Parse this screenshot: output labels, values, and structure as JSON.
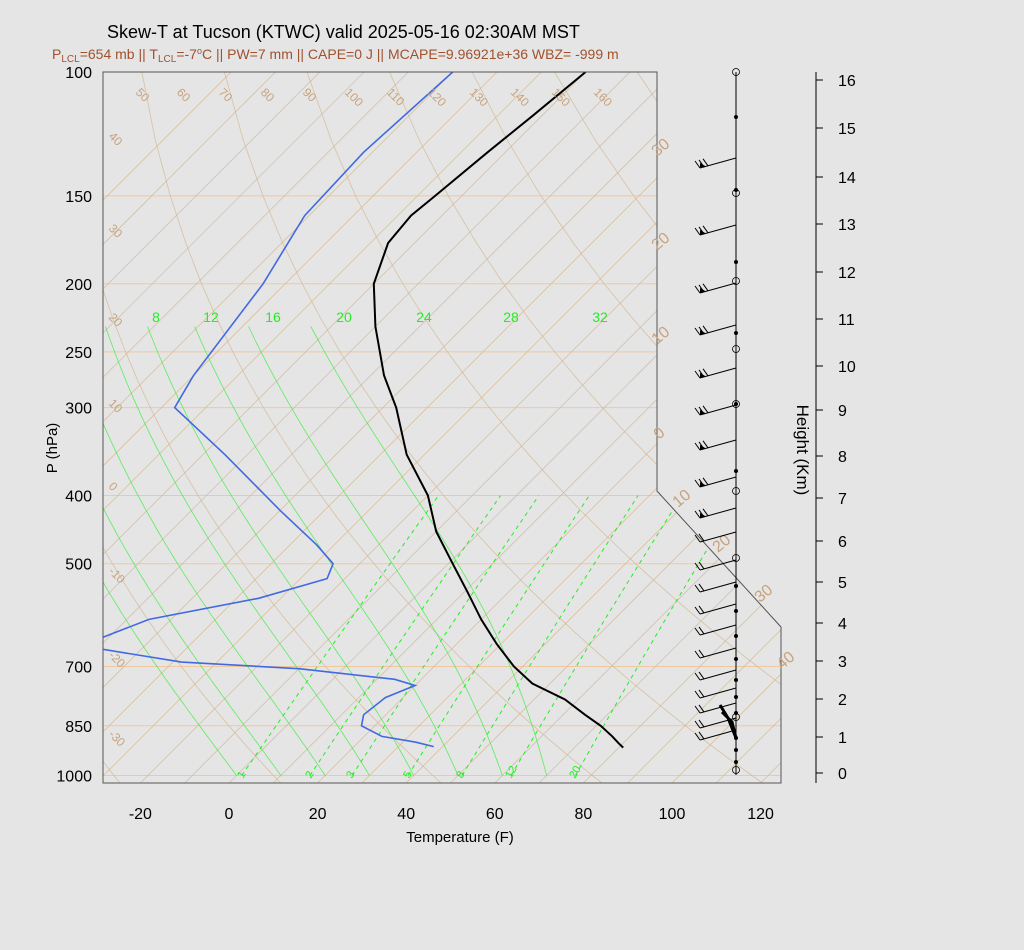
{
  "colors": {
    "background": "#e5e5e5",
    "temperature": "#000000",
    "dewpoint": "#4169e1",
    "isotherm": "#d2b48c",
    "isobar": "#f0c8a0",
    "mixing_ratio": "#22ee22",
    "subtitle": "#a0522d",
    "barb": "#000000"
  },
  "chart_data": {
    "type": "line",
    "subtype": "skew-T log-P",
    "title": "Skew-T at Tucson (KTWC) valid 2025-05-16 02:30AM MST",
    "subtitle": {
      "lcl_p_label": "P",
      "lcl_p_sub": "LCL",
      "lcl_p_value": "=654 mb",
      "sep1": " || ",
      "lcl_t_label": "T",
      "lcl_t_sub": "LCL",
      "lcl_t_value": "=-7",
      "lcl_t_deg": "o",
      "lcl_t_unit": "C",
      "rest": " || PW=7 mm || CAPE=0 J || MCAPE=9.96921e+36 WBZ= -999 m"
    },
    "xlabel": "Temperature (F)",
    "ylabel": "P (hPa)",
    "y2label": "Height (Km)",
    "xlim": [
      -28,
      125
    ],
    "ylim": [
      1025,
      100
    ],
    "x_ticks": [
      -20,
      0,
      20,
      40,
      60,
      80,
      100,
      120
    ],
    "y_ticks": [
      100,
      150,
      200,
      250,
      300,
      400,
      500,
      700,
      850,
      1000
    ],
    "height_ticks": [
      0,
      1,
      2,
      3,
      4,
      5,
      6,
      7,
      8,
      9,
      10,
      11,
      12,
      13,
      14,
      15,
      16
    ],
    "isotherm_labels_top": [
      50,
      60,
      70,
      80,
      90,
      100,
      110,
      120,
      130,
      140,
      150,
      160
    ],
    "isotherm_labels_left": [
      40,
      30,
      20,
      10,
      0,
      -10,
      -20,
      -30
    ],
    "celsius_labels_right": [
      30,
      20,
      10,
      0,
      10,
      20,
      30,
      40
    ],
    "mixing_ratio_labels_top": [
      8,
      12,
      16,
      20,
      24,
      28,
      32
    ],
    "mixing_ratio_labels_bottom": [
      1,
      2,
      3,
      5,
      8,
      12,
      20
    ],
    "series": [
      {
        "name": "Temperature",
        "points": [
          {
            "p": 100,
            "t": -80
          },
          {
            "p": 115,
            "t": -82
          },
          {
            "p": 130,
            "t": -84
          },
          {
            "p": 150,
            "t": -86
          },
          {
            "p": 160,
            "t": -87
          },
          {
            "p": 175,
            "t": -86
          },
          {
            "p": 200,
            "t": -80
          },
          {
            "p": 230,
            "t": -70
          },
          {
            "p": 270,
            "t": -57
          },
          {
            "p": 300,
            "t": -47
          },
          {
            "p": 350,
            "t": -34
          },
          {
            "p": 400,
            "t": -20
          },
          {
            "p": 450,
            "t": -10
          },
          {
            "p": 500,
            "t": 1
          },
          {
            "p": 550,
            "t": 11
          },
          {
            "p": 600,
            "t": 20
          },
          {
            "p": 650,
            "t": 29
          },
          {
            "p": 700,
            "t": 38
          },
          {
            "p": 740,
            "t": 46
          },
          {
            "p": 780,
            "t": 57
          },
          {
            "p": 820,
            "t": 65
          },
          {
            "p": 850,
            "t": 71
          },
          {
            "p": 880,
            "t": 76
          },
          {
            "p": 900,
            "t": 79
          },
          {
            "p": 913,
            "t": 81
          }
        ]
      },
      {
        "name": "Dewpoint",
        "points": [
          {
            "p": 100,
            "t": -110
          },
          {
            "p": 130,
            "t": -112
          },
          {
            "p": 160,
            "t": -111
          },
          {
            "p": 200,
            "t": -105
          },
          {
            "p": 270,
            "t": -100
          },
          {
            "p": 300,
            "t": -97
          },
          {
            "p": 350,
            "t": -75
          },
          {
            "p": 420,
            "t": -50
          },
          {
            "p": 470,
            "t": -34
          },
          {
            "p": 500,
            "t": -26
          },
          {
            "p": 525,
            "t": -24
          },
          {
            "p": 560,
            "t": -35
          },
          {
            "p": 600,
            "t": -55
          },
          {
            "p": 640,
            "t": -62
          },
          {
            "p": 660,
            "t": -60
          },
          {
            "p": 690,
            "t": -38
          },
          {
            "p": 705,
            "t": -10
          },
          {
            "p": 730,
            "t": 14
          },
          {
            "p": 745,
            "t": 20
          },
          {
            "p": 775,
            "t": 16
          },
          {
            "p": 820,
            "t": 15
          },
          {
            "p": 850,
            "t": 17
          },
          {
            "p": 880,
            "t": 24
          },
          {
            "p": 897,
            "t": 33
          },
          {
            "p": 910,
            "t": 38
          }
        ]
      }
    ]
  }
}
